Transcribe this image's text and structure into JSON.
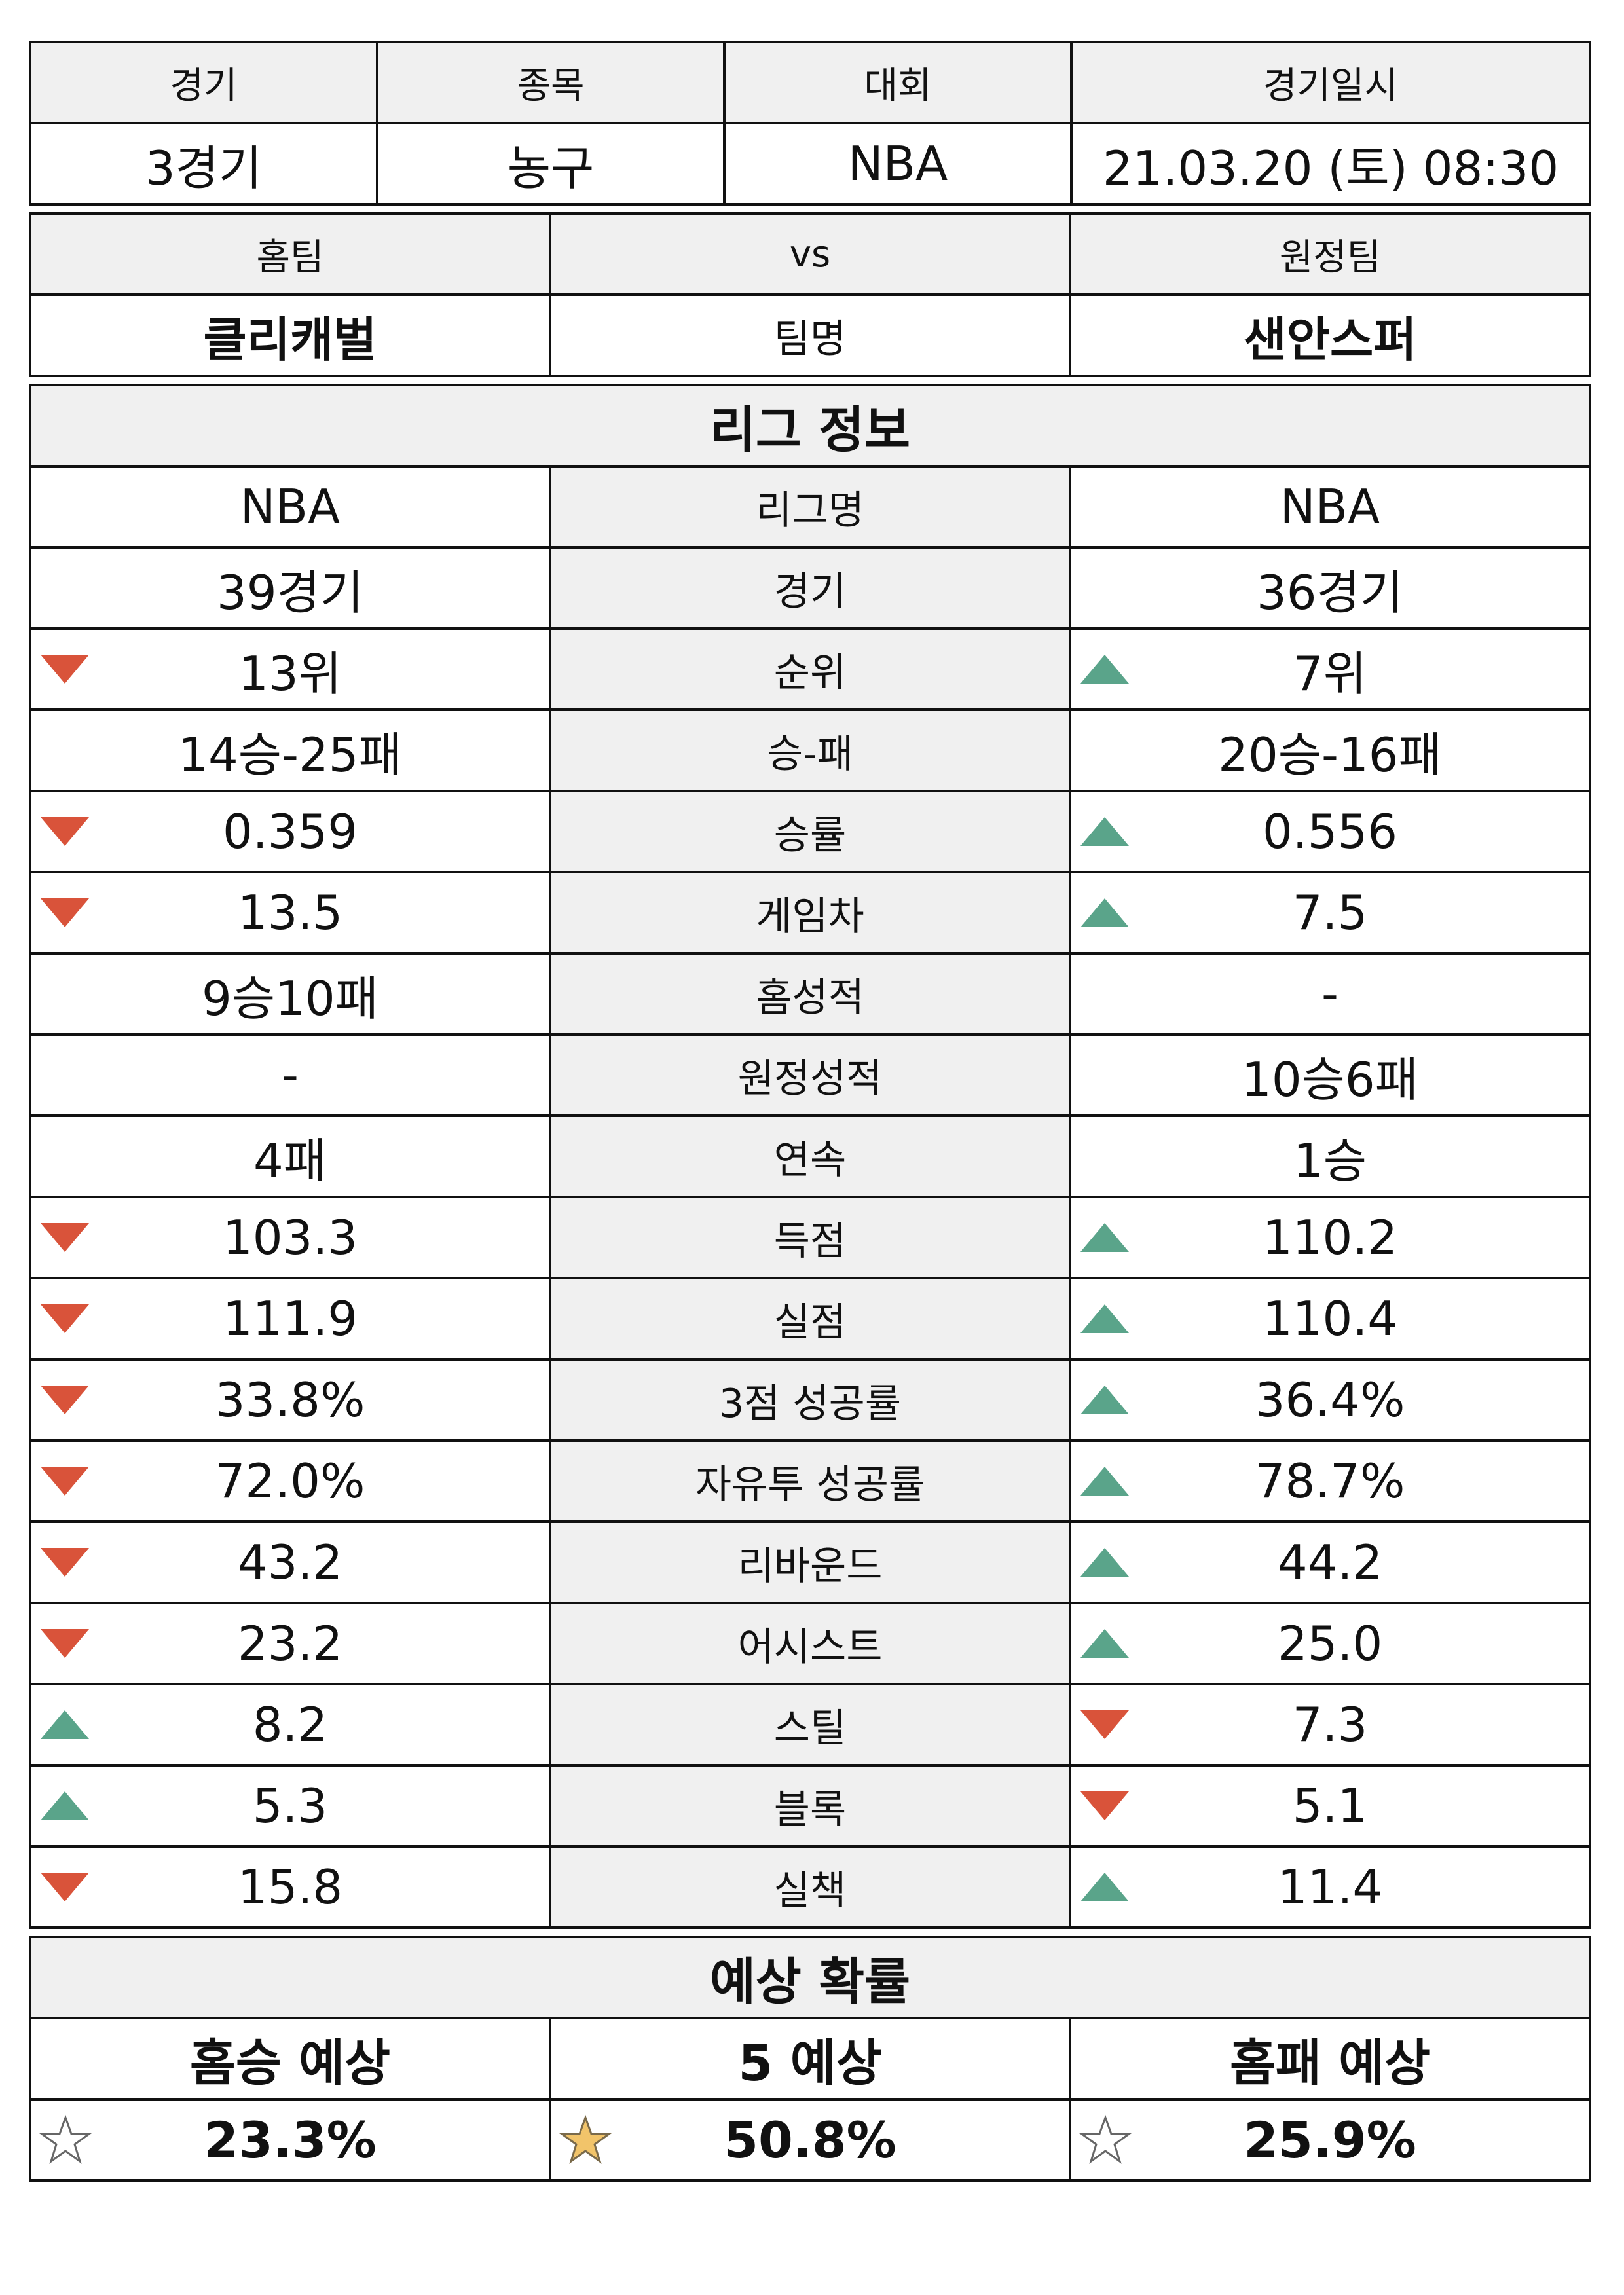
{
  "colors": {
    "down": "#d9533a",
    "up": "#5aa48a",
    "star_filled": "#f2c46a",
    "header_bg": "#f0f0f0"
  },
  "game_info": {
    "headers": [
      "경기",
      "종목",
      "대회",
      "경기일시"
    ],
    "values": [
      "3경기",
      "농구",
      "NBA",
      "21.03.20 (토) 08:30"
    ]
  },
  "teams": {
    "home_label": "홈팀",
    "vs_label": "vs",
    "away_label": "원정팀",
    "home_name": "클리캐벌",
    "name_label": "팀명",
    "away_name": "샌안스퍼"
  },
  "league_section_title": "리그 정보",
  "stats": [
    {
      "label": "리그명",
      "home": "NBA",
      "away": "NBA",
      "home_icon": "",
      "away_icon": ""
    },
    {
      "label": "경기",
      "home": "39경기",
      "away": "36경기",
      "home_icon": "",
      "away_icon": ""
    },
    {
      "label": "순위",
      "home": "13위",
      "away": "7위",
      "home_icon": "down-triangle",
      "away_icon": "up-triangle"
    },
    {
      "label": "승-패",
      "home": "14승-25패",
      "away": "20승-16패",
      "home_icon": "",
      "away_icon": ""
    },
    {
      "label": "승률",
      "home": "0.359",
      "away": "0.556",
      "home_icon": "down-triangle",
      "away_icon": "up-triangle"
    },
    {
      "label": "게임차",
      "home": "13.5",
      "away": "7.5",
      "home_icon": "down-triangle",
      "away_icon": "up-triangle"
    },
    {
      "label": "홈성적",
      "home": "9승10패",
      "away": "-",
      "home_icon": "",
      "away_icon": ""
    },
    {
      "label": "원정성적",
      "home": "-",
      "away": "10승6패",
      "home_icon": "",
      "away_icon": ""
    },
    {
      "label": "연속",
      "home": "4패",
      "away": "1승",
      "home_icon": "",
      "away_icon": ""
    },
    {
      "label": "득점",
      "home": "103.3",
      "away": "110.2",
      "home_icon": "down-triangle",
      "away_icon": "up-triangle"
    },
    {
      "label": "실점",
      "home": "111.9",
      "away": "110.4",
      "home_icon": "down-triangle",
      "away_icon": "up-triangle"
    },
    {
      "label": "3점 성공률",
      "home": "33.8%",
      "away": "36.4%",
      "home_icon": "down-triangle",
      "away_icon": "up-triangle"
    },
    {
      "label": "자유투 성공률",
      "home": "72.0%",
      "away": "78.7%",
      "home_icon": "down-triangle",
      "away_icon": "up-triangle"
    },
    {
      "label": "리바운드",
      "home": "43.2",
      "away": "44.2",
      "home_icon": "down-triangle",
      "away_icon": "up-triangle"
    },
    {
      "label": "어시스트",
      "home": "23.2",
      "away": "25.0",
      "home_icon": "down-triangle",
      "away_icon": "up-triangle"
    },
    {
      "label": "스틸",
      "home": "8.2",
      "away": "7.3",
      "home_icon": "up-triangle",
      "away_icon": "down-triangle"
    },
    {
      "label": "블록",
      "home": "5.3",
      "away": "5.1",
      "home_icon": "up-triangle",
      "away_icon": "down-triangle"
    },
    {
      "label": "실책",
      "home": "15.8",
      "away": "11.4",
      "home_icon": "down-triangle",
      "away_icon": "up-triangle"
    }
  ],
  "prediction": {
    "title": "예상 확률",
    "headers": [
      "홈승 예상",
      "5 예상",
      "홈패 예상"
    ],
    "values": [
      "23.3%",
      "50.8%",
      "25.9%"
    ],
    "stars": [
      "star-outline",
      "star-filled",
      "star-outline"
    ]
  }
}
